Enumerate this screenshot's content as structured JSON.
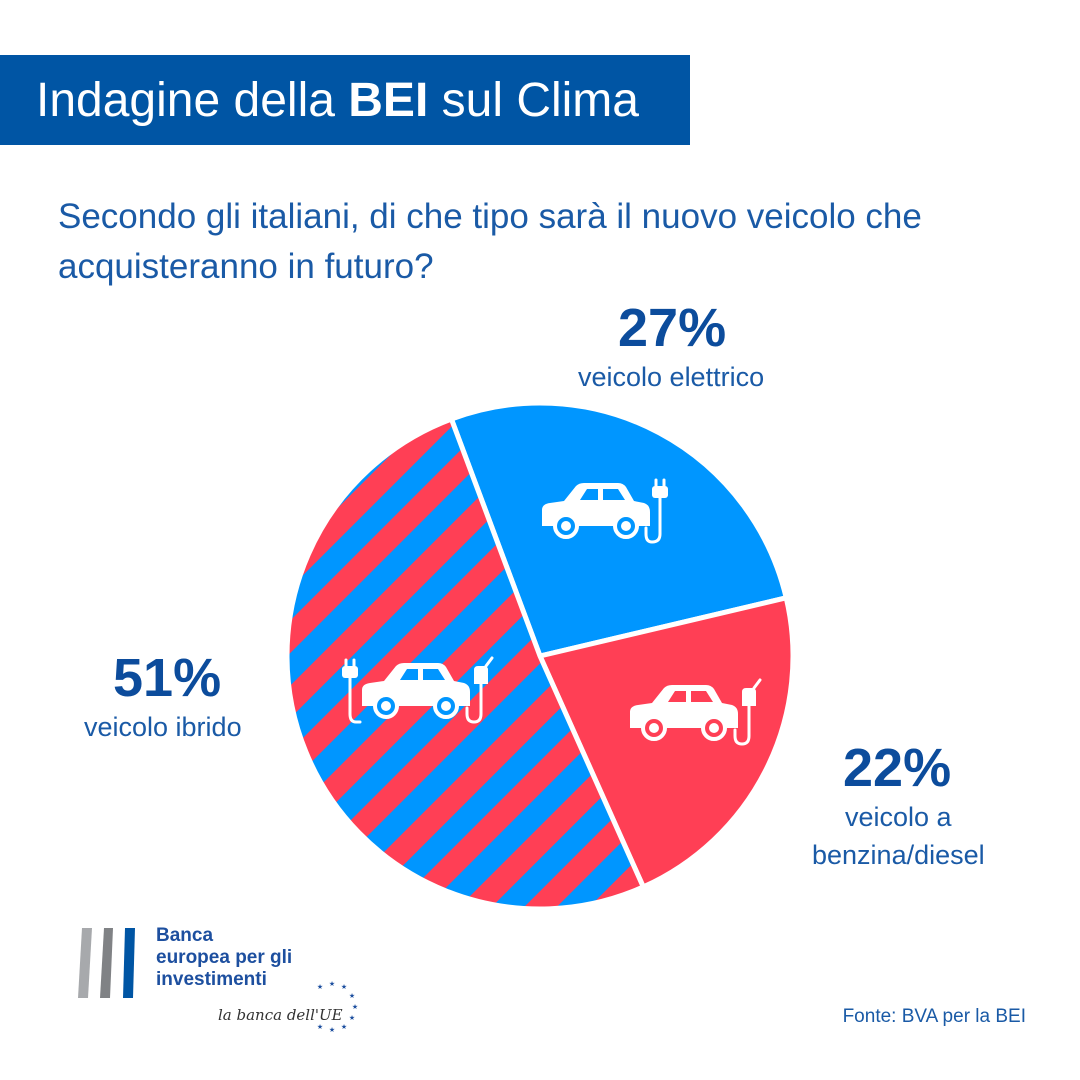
{
  "header": {
    "title_pre": "Indagine della ",
    "title_bold": "BEI",
    "title_post": " sul Clima"
  },
  "question": "Secondo gli italiani, di che tipo sarà il nuovo veicolo che acquisteranno in futuro?",
  "chart_data": {
    "type": "pie",
    "title": "",
    "slices": [
      {
        "label": "veicolo elettrico",
        "value": 27,
        "value_label": "27%",
        "color": "#0096ff",
        "icon": "electric-car-icon"
      },
      {
        "label": "veicolo a benzina/diesel",
        "value": 22,
        "value_label": "22%",
        "color": "#ff3f55",
        "icon": "gas-car-icon"
      },
      {
        "label": "veicolo ibrido",
        "value": 51,
        "value_label": "51%",
        "color": "#0096ff",
        "stripe_color": "#ff3f55",
        "icon": "hybrid-car-icon"
      }
    ]
  },
  "labels": {
    "elettrico_pct": "27%",
    "elettrico_text": "veicolo elettrico",
    "benzina_pct": "22%",
    "benzina_line1": "veicolo a",
    "benzina_line2": "benzina/diesel",
    "ibrido_pct": "51%",
    "ibrido_text": "veicolo ibrido"
  },
  "logo": {
    "line1": "Banca",
    "line2": "europea per gli",
    "line3": "investimenti",
    "tagline": "la banca dell'UE"
  },
  "source": "Fonte: BVA per la BEI",
  "colors": {
    "brand_blue": "#0055a4",
    "text_blue": "#1a5aa6",
    "electric": "#0096ff",
    "fuel": "#ff3f55"
  }
}
